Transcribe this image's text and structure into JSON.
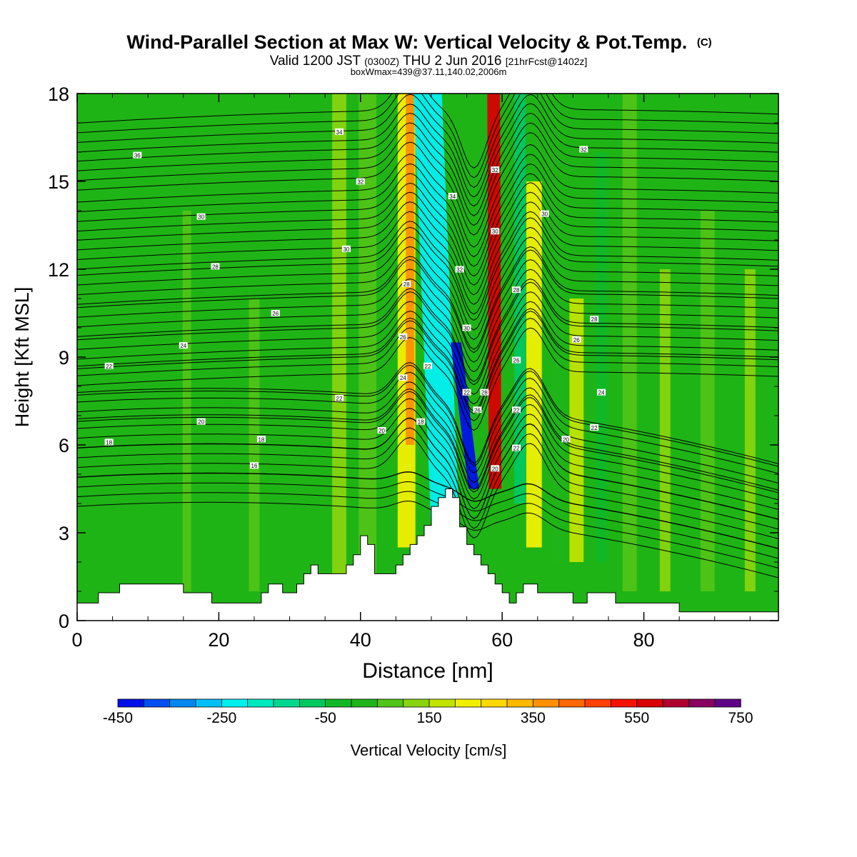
{
  "chart_data": {
    "type": "heatmap",
    "title": "Wind-Parallel Section at Max W: Vertical Velocity & Pot.Temp.",
    "title_mark": "(C)",
    "subtitle_parts": {
      "main1": "Valid 1200 JST ",
      "small1": "(0300Z)",
      "main2": " THU 2 Jun 2016 ",
      "small2": "[21hrFcst@1402z]"
    },
    "subtitle2": "boxWmax=439@37.11,140.02,2006m",
    "xlabel": "Distance [nm]",
    "ylabel": "Height [Kft MSL]",
    "xlim": [
      0,
      99
    ],
    "ylim": [
      0,
      18
    ],
    "xticks": [
      0,
      20,
      40,
      60,
      80
    ],
    "yticks": [
      0,
      3,
      6,
      9,
      12,
      15,
      18
    ],
    "colorbar": {
      "label": "Vertical Velocity [cm/s]",
      "tick_labels": [
        "-450",
        "-250",
        "-50",
        "150",
        "350",
        "550",
        "750"
      ],
      "levels": [
        -450,
        -400,
        -350,
        -300,
        -250,
        -200,
        -150,
        -100,
        -50,
        0,
        50,
        100,
        150,
        200,
        250,
        300,
        350,
        400,
        450,
        500,
        550,
        600,
        650,
        700,
        750
      ],
      "colors": [
        "#0010e8",
        "#0050f0",
        "#0088f0",
        "#00c0f8",
        "#00f0f0",
        "#00e8c0",
        "#00d890",
        "#00c860",
        "#10b828",
        "#20b418",
        "#50c418",
        "#88d410",
        "#c0e400",
        "#f0f000",
        "#ffd800",
        "#ffb800",
        "#ff9000",
        "#ff6800",
        "#ff4000",
        "#f81000",
        "#d80000",
        "#b00030",
        "#880060",
        "#600088"
      ]
    },
    "background_level": "#1fb416",
    "w_features": [
      {
        "x": 15.5,
        "width": 1.2,
        "y_bottom": 1,
        "y_top": 14,
        "value": 50
      },
      {
        "x": 25,
        "width": 1.5,
        "y_bottom": 1,
        "y_top": 11,
        "value": 50
      },
      {
        "x": 37,
        "width": 2,
        "y_bottom": 1.5,
        "y_top": 18,
        "value": 100
      },
      {
        "x": 41,
        "width": 2.5,
        "y_bottom": 1.5,
        "y_top": 18,
        "value": 75
      },
      {
        "x": 46.5,
        "width": 2.5,
        "y_bottom": 2.5,
        "y_top": 18,
        "value": 200
      },
      {
        "x": 47,
        "width": 1.2,
        "y_bottom": 6,
        "y_top": 18,
        "value": 350
      },
      {
        "x": 52,
        "width": 4,
        "y_bottom": 3,
        "y_top": 18,
        "value": -250
      },
      {
        "x": 56,
        "width": 1.5,
        "y_bottom": 4.5,
        "y_top": 9.5,
        "value": -450
      },
      {
        "x": 59,
        "width": 1.8,
        "y_bottom": 4.5,
        "y_top": 18,
        "value": 550
      },
      {
        "x": 62.5,
        "width": 1.6,
        "y_bottom": 4,
        "y_top": 18,
        "value": -100
      },
      {
        "x": 64.5,
        "width": 2.2,
        "y_bottom": 2.5,
        "y_top": 15,
        "value": 200
      },
      {
        "x": 68,
        "width": 1.5,
        "y_bottom": 2,
        "y_top": 14,
        "value": 25
      },
      {
        "x": 70.5,
        "width": 2,
        "y_bottom": 2,
        "y_top": 11,
        "value": 150
      },
      {
        "x": 74,
        "width": 1.5,
        "y_bottom": 2,
        "y_top": 16,
        "value": -50
      },
      {
        "x": 78,
        "width": 2,
        "y_bottom": 1,
        "y_top": 18,
        "value": 75
      },
      {
        "x": 83,
        "width": 1.5,
        "y_bottom": 1,
        "y_top": 12,
        "value": 100
      },
      {
        "x": 89,
        "width": 2,
        "y_bottom": 1,
        "y_top": 14,
        "value": 50
      },
      {
        "x": 95,
        "width": 1.5,
        "y_bottom": 1,
        "y_top": 12,
        "value": 100
      }
    ],
    "terrain": {
      "x": [
        0,
        3,
        3,
        6,
        6,
        15,
        15,
        19,
        19,
        26,
        26,
        27,
        27,
        29,
        29,
        31,
        31,
        32,
        32,
        33,
        33,
        34,
        34,
        38,
        38,
        39,
        39,
        40,
        40,
        41,
        41,
        42,
        42,
        45,
        45,
        46,
        46,
        47,
        47,
        48,
        48,
        49,
        49,
        50,
        50,
        51,
        51,
        52,
        52,
        53,
        53,
        54,
        54,
        55,
        55,
        56,
        56,
        57,
        57,
        58,
        58,
        59,
        59,
        60,
        60,
        61,
        61,
        62,
        62,
        63,
        63,
        65,
        65,
        70,
        70,
        72,
        72,
        76,
        76,
        79,
        79,
        83,
        83,
        85,
        85,
        90,
        90,
        99
      ],
      "y": [
        0.6,
        0.6,
        0.95,
        0.95,
        1.25,
        1.25,
        0.95,
        0.95,
        0.6,
        0.6,
        0.95,
        0.95,
        1.25,
        1.25,
        0.95,
        0.95,
        1.25,
        1.25,
        1.6,
        1.6,
        1.9,
        1.9,
        1.6,
        1.6,
        1.9,
        1.9,
        2.25,
        2.25,
        2.9,
        2.9,
        2.6,
        2.6,
        1.6,
        1.6,
        1.9,
        1.9,
        2.25,
        2.25,
        2.6,
        2.6,
        2.9,
        2.9,
        3.25,
        3.25,
        3.9,
        3.9,
        4.2,
        4.2,
        4.5,
        4.5,
        4.2,
        4.2,
        3.2,
        3.2,
        2.6,
        2.6,
        2.25,
        2.25,
        1.9,
        1.9,
        1.6,
        1.6,
        1.25,
        1.25,
        0.95,
        0.95,
        0.6,
        0.6,
        0.95,
        0.95,
        1.25,
        1.25,
        0.95,
        0.95,
        0.6,
        0.6,
        0.95,
        0.95,
        0.6,
        0.6,
        0.6,
        0.6,
        0.6,
        0.6,
        0.3,
        0.3,
        0.3,
        0.3
      ]
    },
    "isentropes": {
      "levels": [
        14,
        16,
        18,
        20,
        22,
        24,
        26,
        28,
        30,
        32,
        34,
        36
      ],
      "base_heights": [
        3.9,
        4.9,
        5.9,
        6.8,
        7.7,
        8.6,
        9.7,
        10.8,
        12.0,
        13.3,
        14.7,
        16.0
      ],
      "interval_kft": 0.33
    },
    "contour_labels": [
      {
        "text": "36",
        "x": 8.5,
        "y": 15.9
      },
      {
        "text": "34",
        "x": 37,
        "y": 16.7
      },
      {
        "text": "32",
        "x": 40,
        "y": 15.0
      },
      {
        "text": "30",
        "x": 17.5,
        "y": 13.8
      },
      {
        "text": "30",
        "x": 38,
        "y": 12.7
      },
      {
        "text": "28",
        "x": 19.5,
        "y": 12.1
      },
      {
        "text": "26",
        "x": 28,
        "y": 10.5
      },
      {
        "text": "24",
        "x": 15,
        "y": 9.4
      },
      {
        "text": "22",
        "x": 4.5,
        "y": 8.7
      },
      {
        "text": "22",
        "x": 37,
        "y": 7.6
      },
      {
        "text": "20",
        "x": 17.5,
        "y": 6.8
      },
      {
        "text": "18",
        "x": 4.5,
        "y": 6.1
      },
      {
        "text": "18",
        "x": 26,
        "y": 6.2
      },
      {
        "text": "16",
        "x": 25,
        "y": 5.3
      },
      {
        "text": "28",
        "x": 46.5,
        "y": 11.5
      },
      {
        "text": "26",
        "x": 46,
        "y": 9.7
      },
      {
        "text": "24",
        "x": 46,
        "y": 8.3
      },
      {
        "text": "20",
        "x": 43,
        "y": 6.5
      },
      {
        "text": "18",
        "x": 48.5,
        "y": 6.8
      },
      {
        "text": "22",
        "x": 49.5,
        "y": 8.7
      },
      {
        "text": "34",
        "x": 53,
        "y": 14.5
      },
      {
        "text": "32",
        "x": 54,
        "y": 12.0
      },
      {
        "text": "30",
        "x": 55,
        "y": 10.0
      },
      {
        "text": "22",
        "x": 55,
        "y": 7.8
      },
      {
        "text": "26",
        "x": 56.5,
        "y": 7.2
      },
      {
        "text": "28",
        "x": 57.5,
        "y": 7.8
      },
      {
        "text": "20",
        "x": 59,
        "y": 5.2
      },
      {
        "text": "32",
        "x": 59,
        "y": 15.4
      },
      {
        "text": "30",
        "x": 59,
        "y": 13.3
      },
      {
        "text": "28",
        "x": 62,
        "y": 11.3
      },
      {
        "text": "26",
        "x": 62,
        "y": 8.9
      },
      {
        "text": "22",
        "x": 62,
        "y": 7.2
      },
      {
        "text": "22",
        "x": 62,
        "y": 5.9
      },
      {
        "text": "30",
        "x": 66,
        "y": 13.9
      },
      {
        "text": "28",
        "x": 73,
        "y": 10.3
      },
      {
        "text": "26",
        "x": 70.5,
        "y": 9.6
      },
      {
        "text": "24",
        "x": 74,
        "y": 7.8
      },
      {
        "text": "22",
        "x": 73,
        "y": 6.6
      },
      {
        "text": "20",
        "x": 69,
        "y": 6.2
      },
      {
        "text": "32",
        "x": 71.5,
        "y": 16.1
      }
    ]
  }
}
